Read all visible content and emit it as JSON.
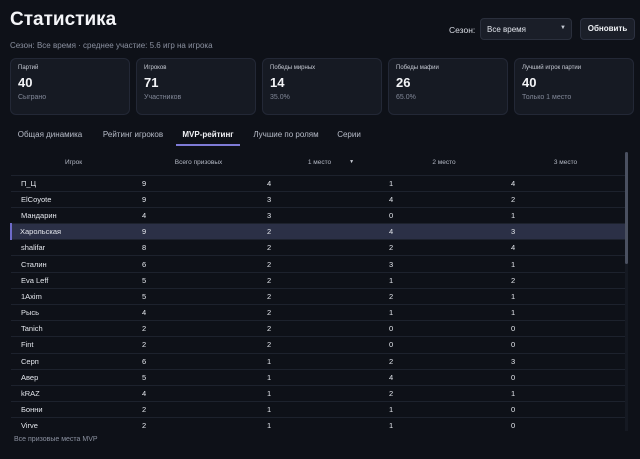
{
  "header": {
    "title": "Статистика",
    "subtitle": "Сезон: Все время · среднее участие: 5.6 игр на игрока",
    "season_label": "Сезон:",
    "season_value": "Все время",
    "refresh_label": "Обновить"
  },
  "cards": [
    {
      "label": "Партий",
      "value": "40",
      "sub": "Сыграно"
    },
    {
      "label": "Игроков",
      "value": "71",
      "sub": "Участников"
    },
    {
      "label": "Победы мирных",
      "value": "14",
      "sub": "35.0%"
    },
    {
      "label": "Победы мафии",
      "value": "26",
      "sub": "65.0%"
    },
    {
      "label": "Лучший игрок партии",
      "value": "40",
      "sub": "Только 1 место"
    }
  ],
  "tabs": [
    {
      "label": "Общая динамика"
    },
    {
      "label": "Рейтинг игроков"
    },
    {
      "label": "MVP-рейтинг"
    },
    {
      "label": "Лучшие по ролям"
    },
    {
      "label": "Серии"
    }
  ],
  "active_tab": "MVP-рейтинг",
  "table": {
    "headers": [
      "Игрок",
      "Всего призовых",
      "1 место",
      "2 место",
      "3 место"
    ],
    "sorted_column": "1 место",
    "selected_player": "Харольская",
    "rows": [
      {
        "name": "П_Ц",
        "total": "9",
        "p1": "4",
        "p2": "1",
        "p3": "4"
      },
      {
        "name": "ElCoyote",
        "total": "9",
        "p1": "3",
        "p2": "4",
        "p3": "2"
      },
      {
        "name": "Мандарин",
        "total": "4",
        "p1": "3",
        "p2": "0",
        "p3": "1"
      },
      {
        "name": "Харольская",
        "total": "9",
        "p1": "2",
        "p2": "4",
        "p3": "3"
      },
      {
        "name": "shalifar",
        "total": "8",
        "p1": "2",
        "p2": "2",
        "p3": "4"
      },
      {
        "name": "Сталин",
        "total": "6",
        "p1": "2",
        "p2": "3",
        "p3": "1"
      },
      {
        "name": "Eva Leff",
        "total": "5",
        "p1": "2",
        "p2": "1",
        "p3": "2"
      },
      {
        "name": "1Axim",
        "total": "5",
        "p1": "2",
        "p2": "2",
        "p3": "1"
      },
      {
        "name": "Рысь",
        "total": "4",
        "p1": "2",
        "p2": "1",
        "p3": "1"
      },
      {
        "name": "Tanich",
        "total": "2",
        "p1": "2",
        "p2": "0",
        "p3": "0"
      },
      {
        "name": "Fint",
        "total": "2",
        "p1": "2",
        "p2": "0",
        "p3": "0"
      },
      {
        "name": "Серп",
        "total": "6",
        "p1": "1",
        "p2": "2",
        "p3": "3"
      },
      {
        "name": "Авер",
        "total": "5",
        "p1": "1",
        "p2": "4",
        "p3": "0"
      },
      {
        "name": "kRAZ",
        "total": "4",
        "p1": "1",
        "p2": "2",
        "p3": "1"
      },
      {
        "name": "Бонни",
        "total": "2",
        "p1": "1",
        "p2": "1",
        "p3": "0"
      },
      {
        "name": "Virve",
        "total": "2",
        "p1": "1",
        "p2": "1",
        "p3": "0"
      }
    ]
  },
  "footnote": "Все призовые места MVP",
  "icons": {
    "select": "chevron-down-icon",
    "sort": "sort-desc-icon"
  },
  "colors": {
    "background": "#0e1118",
    "card": "#161a23",
    "accent": "#7e7bd6",
    "selected_row": "#2b3046"
  }
}
